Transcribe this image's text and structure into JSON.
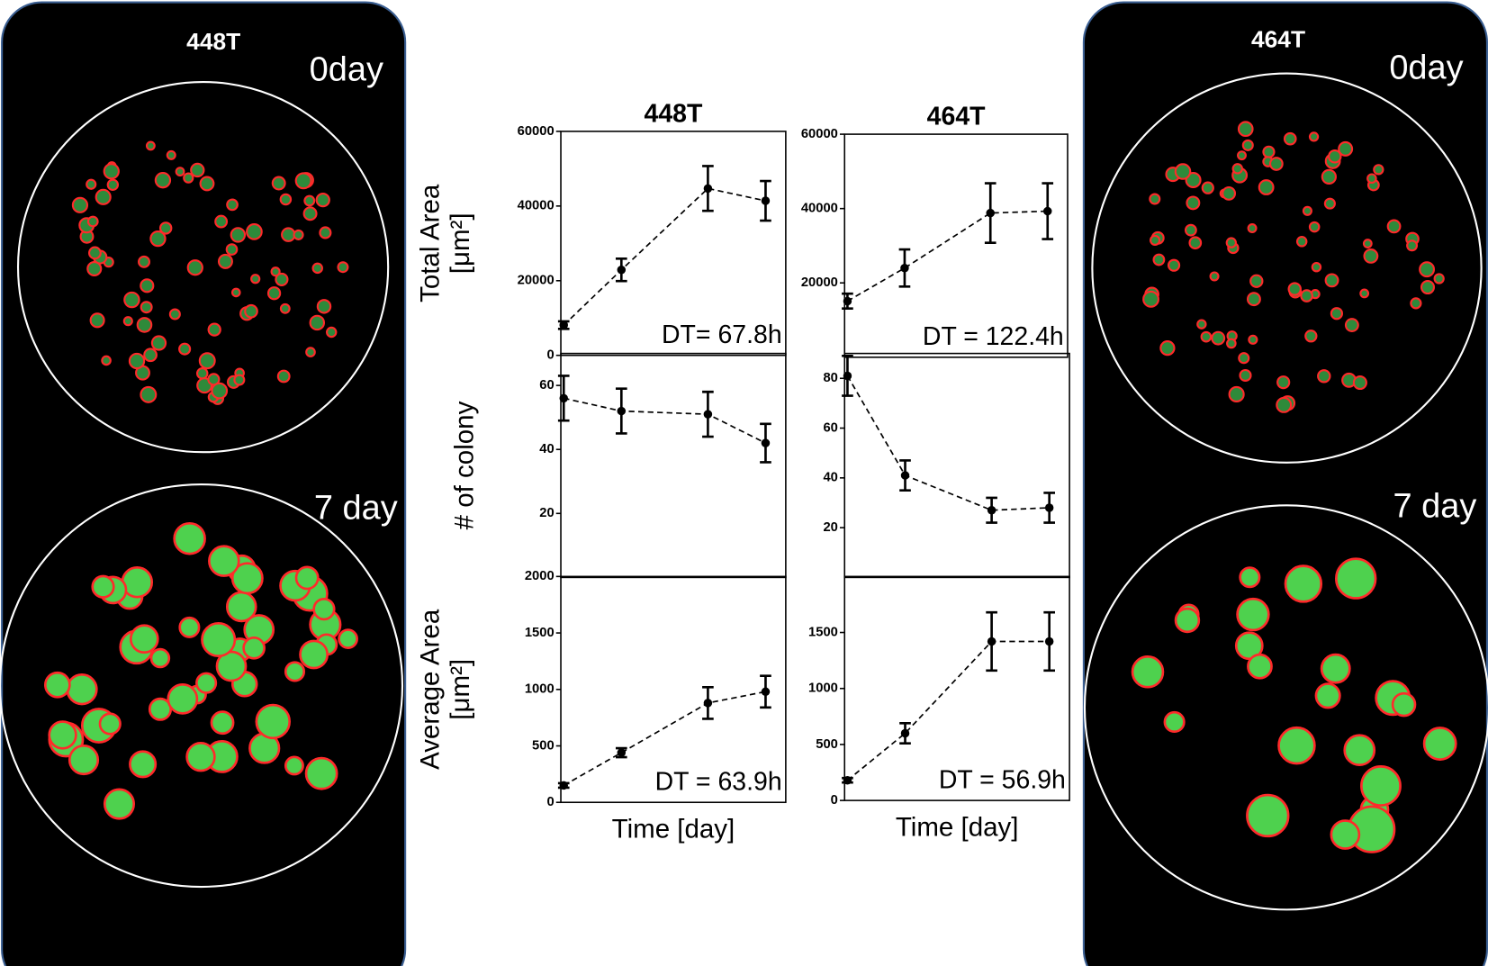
{
  "panels": [
    {
      "title": "448T",
      "labels": [
        "0day",
        "7 day"
      ]
    },
    {
      "title": "464T",
      "labels": [
        "0day",
        "7 day"
      ]
    }
  ],
  "chart_data": [
    {
      "type": "line",
      "title": "448T",
      "ylabel": [
        "Total Area",
        "[μm²]"
      ],
      "annotation": "DT= 67.8h",
      "x": [
        0,
        2,
        5,
        7
      ],
      "xlim": [
        -0.1,
        7.7
      ],
      "values": [
        8100,
        22900,
        44700,
        41400
      ],
      "errors": [
        1000,
        3000,
        6000,
        5300
      ],
      "ylim": [
        0,
        60000
      ],
      "yticks": [
        0,
        20000,
        40000,
        60000
      ],
      "color": "#000000"
    },
    {
      "type": "line",
      "title": "464T",
      "annotation": "DT = 122.4h",
      "x": [
        0,
        2,
        5,
        7
      ],
      "xlim": [
        -0.1,
        7.7
      ],
      "values": [
        15100,
        24000,
        38800,
        39300
      ],
      "errors": [
        2000,
        5000,
        8000,
        7500
      ],
      "ylim": [
        0,
        60000
      ],
      "yticks": [
        20000,
        40000,
        60000
      ],
      "color": "#000000"
    },
    {
      "type": "line",
      "ylabel": [
        "# of colony"
      ],
      "x": [
        0,
        2,
        5,
        7
      ],
      "xlim": [
        -0.1,
        7.7
      ],
      "values": [
        56,
        52,
        51,
        42
      ],
      "errors": [
        7,
        7,
        7,
        6
      ],
      "ylim": [
        0,
        70
      ],
      "yticks": [
        20,
        40,
        60
      ],
      "color": "#000000"
    },
    {
      "type": "line",
      "x": [
        0,
        2,
        5,
        7
      ],
      "xlim": [
        -0.1,
        7.7
      ],
      "values": [
        81,
        41,
        27,
        28
      ],
      "errors": [
        8,
        6,
        5,
        6
      ],
      "ylim": [
        0,
        90
      ],
      "yticks": [
        20,
        40,
        60,
        80
      ],
      "color": "#000000"
    },
    {
      "type": "line",
      "ylabel": [
        "Average Area",
        "[μm²]"
      ],
      "xlabel": "Time [day]",
      "annotation": "DT = 63.9h",
      "x": [
        0,
        2,
        5,
        7
      ],
      "xlim": [
        -0.1,
        7.7
      ],
      "values": [
        150,
        440,
        880,
        980
      ],
      "errors": [
        20,
        40,
        140,
        140
      ],
      "ylim": [
        0,
        2000
      ],
      "yticks": [
        0,
        500,
        1000,
        1500,
        2000
      ],
      "color": "#000000"
    },
    {
      "type": "line",
      "xlabel": "Time [day]",
      "annotation": "DT = 56.9h",
      "x": [
        0,
        2,
        5,
        7
      ],
      "xlim": [
        -0.1,
        7.7
      ],
      "values": [
        180,
        600,
        1420,
        1420
      ],
      "errors": [
        20,
        90,
        260,
        260
      ],
      "ylim": [
        0,
        2000
      ],
      "yticks": [
        0,
        500,
        1000,
        1500
      ],
      "color": "#000000"
    }
  ]
}
